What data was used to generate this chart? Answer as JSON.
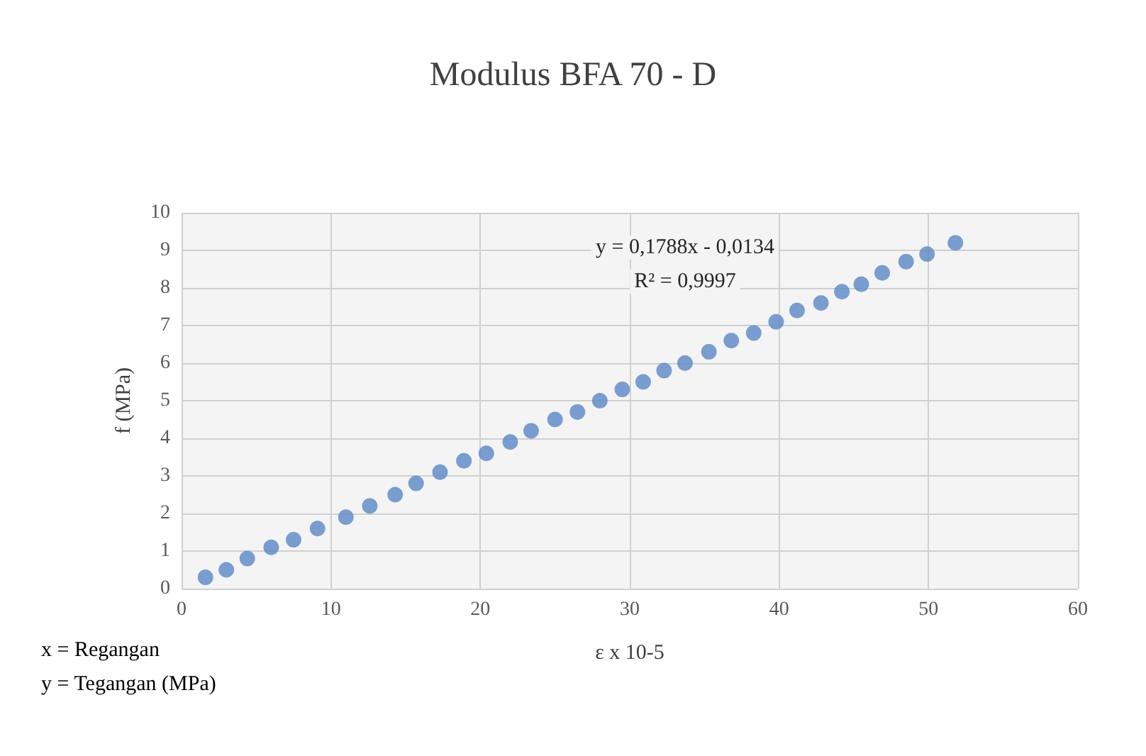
{
  "chart_data": {
    "type": "scatter",
    "title": "Modulus BFA 70 - D",
    "xlabel": "ε x 10-5",
    "ylabel": "f (MPa)",
    "annotations": [
      "y = 0,1788x - 0,0134",
      "R² = 0,9997",
      "x = Regangan",
      "y = Tegangan (MPa)"
    ],
    "x": [
      1.6,
      3.0,
      4.4,
      6.0,
      7.5,
      9.1,
      11.0,
      12.6,
      14.3,
      15.7,
      17.3,
      18.9,
      20.4,
      22.0,
      23.4,
      25.0,
      26.5,
      28.0,
      29.5,
      30.9,
      32.3,
      33.7,
      35.3,
      36.8,
      38.3,
      39.8,
      41.2,
      42.8,
      44.2,
      45.5,
      46.9,
      48.5,
      49.9,
      51.8
    ],
    "series": [
      {
        "color": "#5b87c5",
        "values": [
          0.3,
          0.5,
          0.8,
          1.1,
          1.3,
          1.6,
          1.9,
          2.2,
          2.5,
          2.8,
          3.1,
          3.4,
          3.6,
          3.9,
          4.2,
          4.5,
          4.7,
          5.0,
          5.3,
          5.5,
          5.8,
          6.0,
          6.3,
          6.6,
          6.8,
          7.1,
          7.4,
          7.6,
          7.9,
          8.1,
          8.4,
          8.7,
          8.9,
          9.2
        ]
      }
    ],
    "xlim": [
      0,
      60
    ],
    "xticks": [
      0,
      10,
      20,
      30,
      40,
      50,
      60
    ],
    "ylim": [
      0,
      10
    ],
    "yticks": [
      0,
      1,
      2,
      3,
      4,
      5,
      6,
      7,
      8,
      9,
      10
    ],
    "grid": true,
    "marker": "circle"
  }
}
